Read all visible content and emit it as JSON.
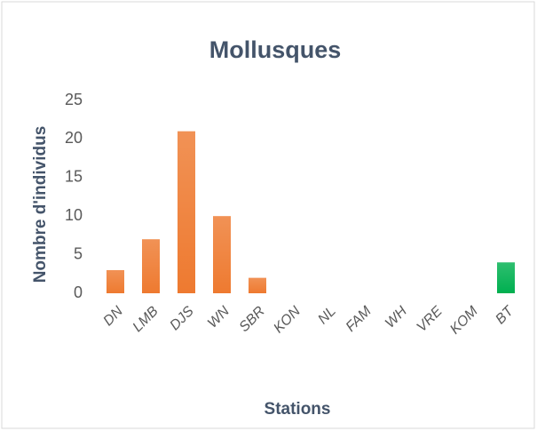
{
  "chart_data": {
    "type": "bar",
    "title": "Mollusques",
    "x_label": "Stations",
    "y_label": "Nombre d'individus",
    "categories": [
      "DN",
      "LMB",
      "DJS",
      "WN",
      "SBR",
      "KON",
      "NL",
      "FAM",
      "WH",
      "VRE",
      "KOM",
      "BT"
    ],
    "values": [
      3,
      7,
      21,
      10,
      2,
      0,
      0,
      0,
      0,
      0,
      0,
      4
    ],
    "colors": [
      "#ee7a30",
      "#ee7a30",
      "#ee7a30",
      "#ee7a30",
      "#ee7a30",
      "#ee7a30",
      "#ee7a30",
      "#ee7a30",
      "#ee7a30",
      "#ee7a30",
      "#ee7a30",
      "#00b050"
    ],
    "ylim": [
      0,
      25
    ],
    "yticks": [
      0,
      5,
      10,
      15,
      20,
      25
    ],
    "grid": false
  }
}
